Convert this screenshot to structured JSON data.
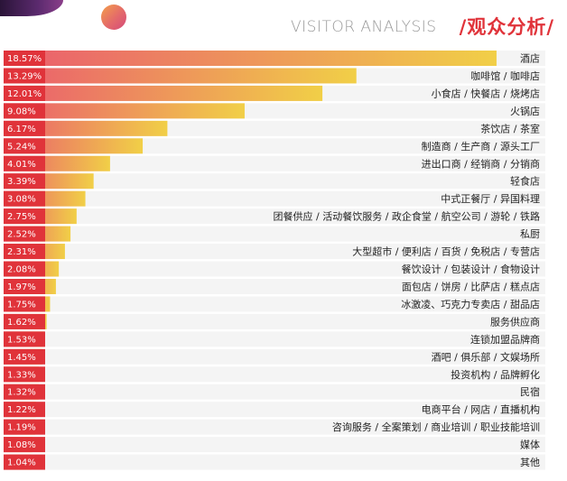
{
  "header": {
    "title_en": "VISITOR ANALYSIS",
    "title_zh": "/观众分析/"
  },
  "colors": {
    "accent_red": "#e0333a",
    "bar_start": "#ea5c6e",
    "bar_end": "#f1cf47",
    "row_background": "#f4f4f4"
  },
  "chart_data": {
    "type": "bar",
    "orientation": "horizontal",
    "title": "/观众分析/",
    "subtitle": "VISITOR ANALYSIS",
    "unit": "%",
    "xlim": [
      0,
      20
    ],
    "categories": [
      "酒店",
      "咖啡馆 / 咖啡店",
      "小食店 / 快餐店 / 烧烤店",
      "火锅店",
      "茶饮店 / 茶室",
      "制造商 / 生产商 / 源头工厂",
      "进出口商 / 经销商 / 分销商",
      "轻食店",
      "中式正餐厅 / 异国料理",
      "团餐供应 / 活动餐饮服务 / 政企食堂 / 航空公司 / 游轮 / 铁路",
      "私厨",
      "大型超市 / 便利店 / 百货 / 免税店 / 专营店",
      "餐饮设计 / 包装设计 / 食物设计",
      "面包店 / 饼房 / 比萨店 / 糕点店",
      "冰激凌、巧克力专卖店 / 甜品店",
      "服务供应商",
      "连锁加盟品牌商",
      "酒吧 / 俱乐部 / 文娱场所",
      "投资机构 / 品牌孵化",
      "民宿",
      "电商平台 / 网店 / 直播机构",
      "咨询服务 / 全案策划 / 商业培训 / 职业技能培训",
      "媒体",
      "其他"
    ],
    "values": [
      18.57,
      13.29,
      12.01,
      9.08,
      6.17,
      5.24,
      4.01,
      3.39,
      3.08,
      2.75,
      2.52,
      2.31,
      2.08,
      1.97,
      1.75,
      1.62,
      1.53,
      1.45,
      1.33,
      1.32,
      1.22,
      1.19,
      1.08,
      1.04
    ],
    "labels": [
      "18.57%",
      "13.29%",
      "12.01%",
      "9.08%",
      "6.17%",
      "5.24%",
      "4.01%",
      "3.39%",
      "3.08%",
      "2.75%",
      "2.52%",
      "2.31%",
      "2.08%",
      "1.97%",
      "1.75%",
      "1.62%",
      "1.53%",
      "1.45%",
      "1.33%",
      "1.32%",
      "1.22%",
      "1.19%",
      "1.08%",
      "1.04%"
    ]
  }
}
